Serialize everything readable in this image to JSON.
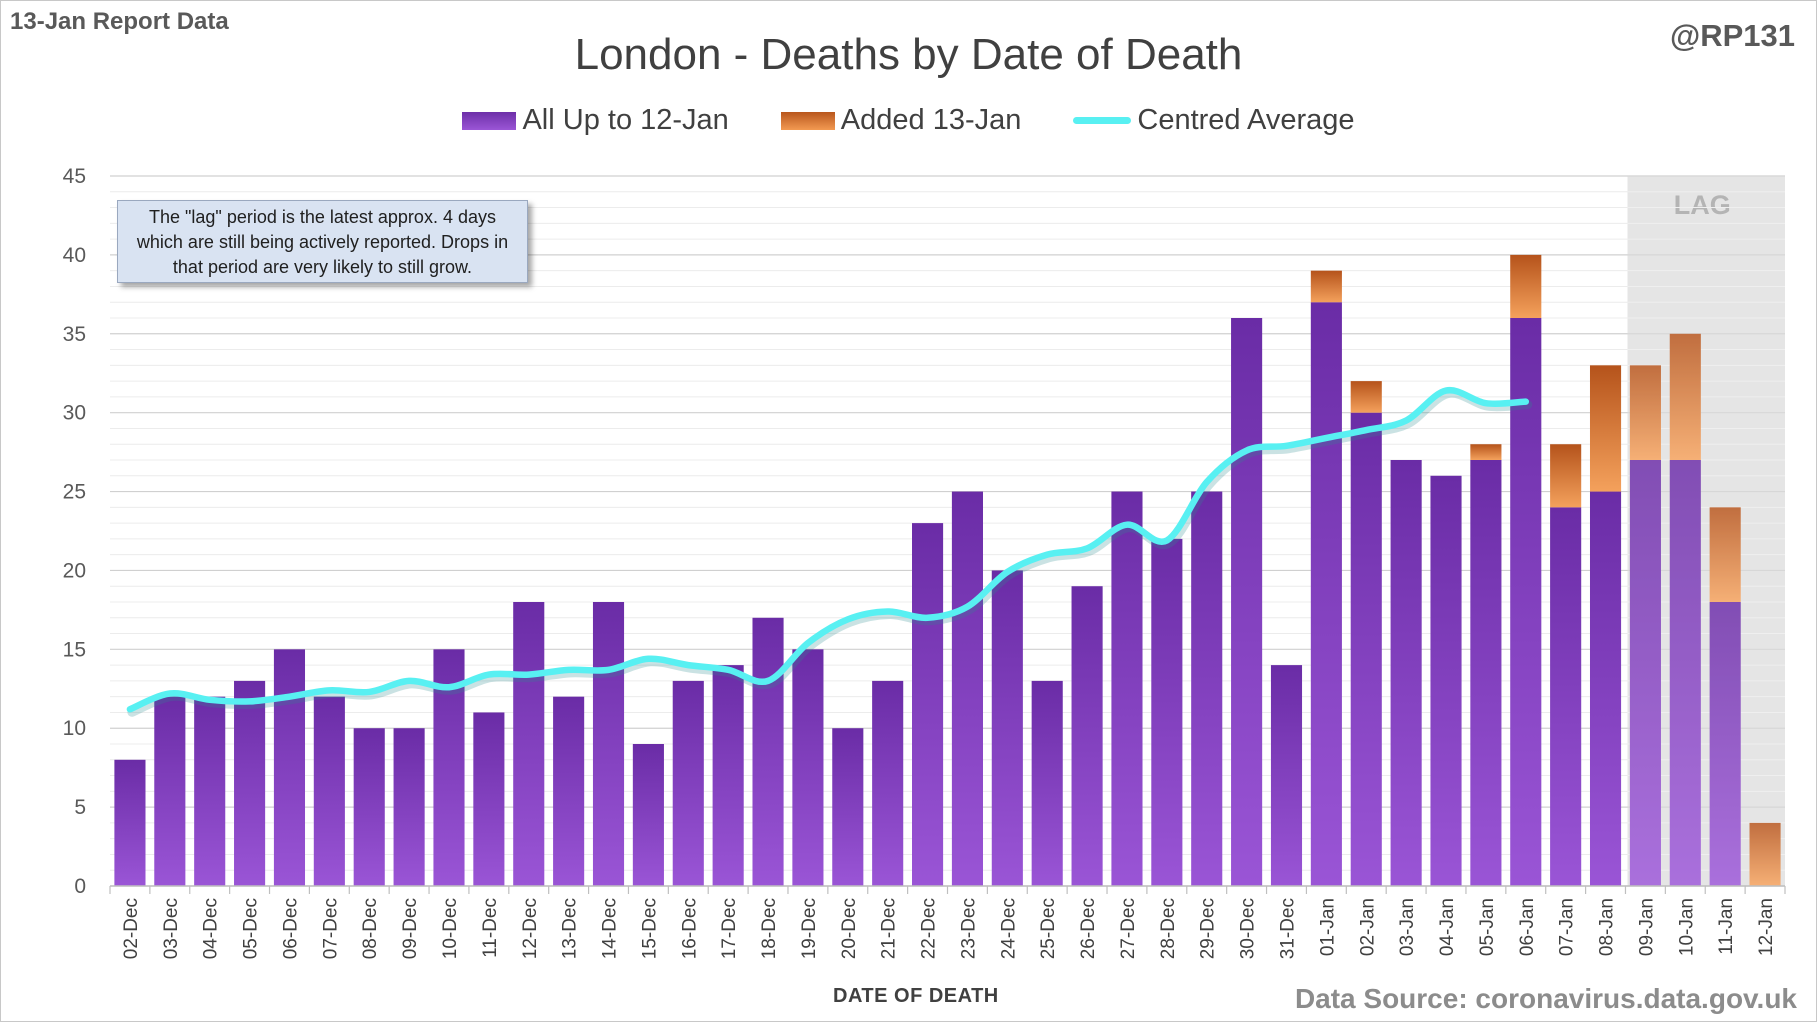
{
  "header": {
    "report_tag": "13-Jan Report Data",
    "handle": "@RP131",
    "source": "Data Source: coronavirus.data.gov.uk"
  },
  "annotation": {
    "note": "The \"lag\" period is the latest approx. 4 days which are still being actively reported.  Drops in that period are very likely to still grow.",
    "lag_label": "LAG"
  },
  "colors": {
    "purple": "#7b3cb8",
    "orange": "#d9752f",
    "average_line": "#58f0f2",
    "lag_shade": "#e0e0e0"
  },
  "chart_data": {
    "type": "bar",
    "title": "London - Deaths by Date of Death",
    "xlabel": "DATE OF DEATH",
    "ylabel": "",
    "ylim": [
      0,
      45
    ],
    "yticks": [
      0,
      5,
      10,
      15,
      20,
      25,
      30,
      35,
      40,
      45
    ],
    "stacked": true,
    "grid": true,
    "legend_position": "top",
    "categories": [
      "02-Dec",
      "03-Dec",
      "04-Dec",
      "05-Dec",
      "06-Dec",
      "07-Dec",
      "08-Dec",
      "09-Dec",
      "10-Dec",
      "11-Dec",
      "12-Dec",
      "13-Dec",
      "14-Dec",
      "15-Dec",
      "16-Dec",
      "17-Dec",
      "18-Dec",
      "19-Dec",
      "20-Dec",
      "21-Dec",
      "22-Dec",
      "23-Dec",
      "24-Dec",
      "25-Dec",
      "26-Dec",
      "27-Dec",
      "28-Dec",
      "29-Dec",
      "30-Dec",
      "31-Dec",
      "01-Jan",
      "02-Jan",
      "03-Jan",
      "04-Jan",
      "05-Jan",
      "06-Jan",
      "07-Jan",
      "08-Jan",
      "09-Jan",
      "10-Jan",
      "11-Jan",
      "12-Jan"
    ],
    "series": [
      {
        "name": "All Up to 12-Jan",
        "kind": "bar",
        "values": [
          8,
          12,
          12,
          13,
          15,
          12,
          10,
          10,
          15,
          11,
          18,
          12,
          18,
          9,
          13,
          14,
          17,
          15,
          10,
          13,
          23,
          25,
          20,
          13,
          19,
          25,
          22,
          25,
          36,
          14,
          37,
          30,
          27,
          26,
          27,
          36,
          24,
          25,
          27,
          27,
          18,
          0
        ]
      },
      {
        "name": "Added 13-Jan",
        "kind": "bar",
        "values": [
          0,
          0,
          0,
          0,
          0,
          0,
          0,
          0,
          0,
          0,
          0,
          0,
          0,
          0,
          0,
          0,
          0,
          0,
          0,
          0,
          0,
          0,
          0,
          0,
          0,
          0,
          0,
          0,
          0,
          0,
          2,
          2,
          0,
          0,
          1,
          4,
          4,
          8,
          6,
          8,
          6,
          4
        ]
      },
      {
        "name": "Centred Average",
        "kind": "line",
        "values": [
          11.2,
          12.2,
          11.8,
          11.7,
          12.0,
          12.4,
          12.3,
          13.0,
          12.6,
          13.4,
          13.4,
          13.7,
          13.7,
          14.4,
          14.0,
          13.7,
          13.0,
          15.4,
          16.9,
          17.4,
          17.0,
          17.7,
          19.9,
          21.0,
          21.4,
          22.9,
          21.9,
          25.6,
          27.6,
          27.9,
          28.4,
          28.9,
          29.5,
          31.4,
          30.6,
          30.7,
          null,
          null,
          null,
          null,
          null,
          null
        ]
      }
    ],
    "lag_region": [
      "09-Jan",
      "12-Jan"
    ]
  }
}
